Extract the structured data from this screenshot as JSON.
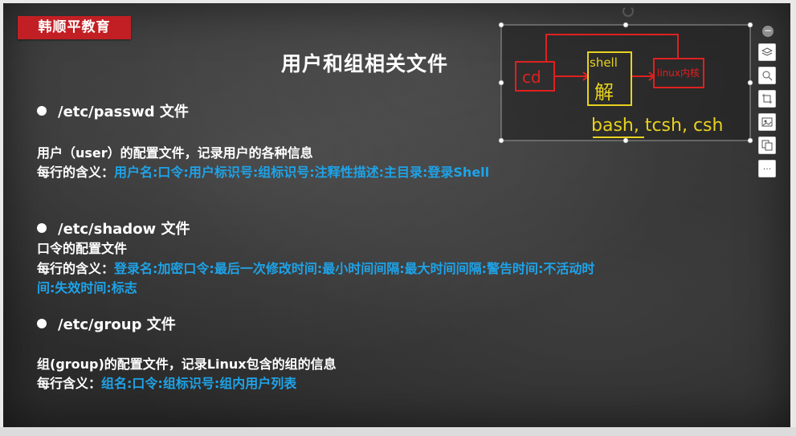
{
  "brand": "韩顺平教育",
  "title": "用户和组相关文件",
  "sections": {
    "passwd": {
      "heading": "/etc/passwd 文件",
      "desc": "用户（user）的配置文件，记录用户的各种信息",
      "meaning_label": "每行的含义：",
      "meaning_value": "用户名:口令:用户标识号:组标识号:注释性描述:主目录:登录Shell"
    },
    "shadow": {
      "heading": "/etc/shadow 文件",
      "desc": "口令的配置文件",
      "meaning_label": "每行的含义：",
      "meaning_value_line1": "登录名:加密口令:最后一次修改时间:最小时间间隔:最大时间间隔:警告时间:不活动时",
      "meaning_value_line2": "间:失效时间:标志"
    },
    "group": {
      "heading": "/etc/group 文件",
      "desc": "组(group)的配置文件，记录Linux包含的组的信息",
      "meaning_label": "每行含义：",
      "meaning_value": "组名:口令:组标识号:组内用户列表"
    }
  },
  "annotation": {
    "left_box": "cd",
    "middle_top": "shell",
    "middle_bottom": "解",
    "right_box": "linux内核",
    "shells": "bash, tcsh, csh"
  },
  "toolbar": {
    "items": [
      "layers-icon",
      "zoom-icon",
      "crop-icon",
      "image-icon",
      "copy-icon",
      "more-icon"
    ],
    "more_label": "···"
  },
  "colors": {
    "brand_red": "#c21f24",
    "highlight_blue": "#1ea3e8",
    "ink_red": "#e02020",
    "ink_yellow": "#e8d21e"
  }
}
